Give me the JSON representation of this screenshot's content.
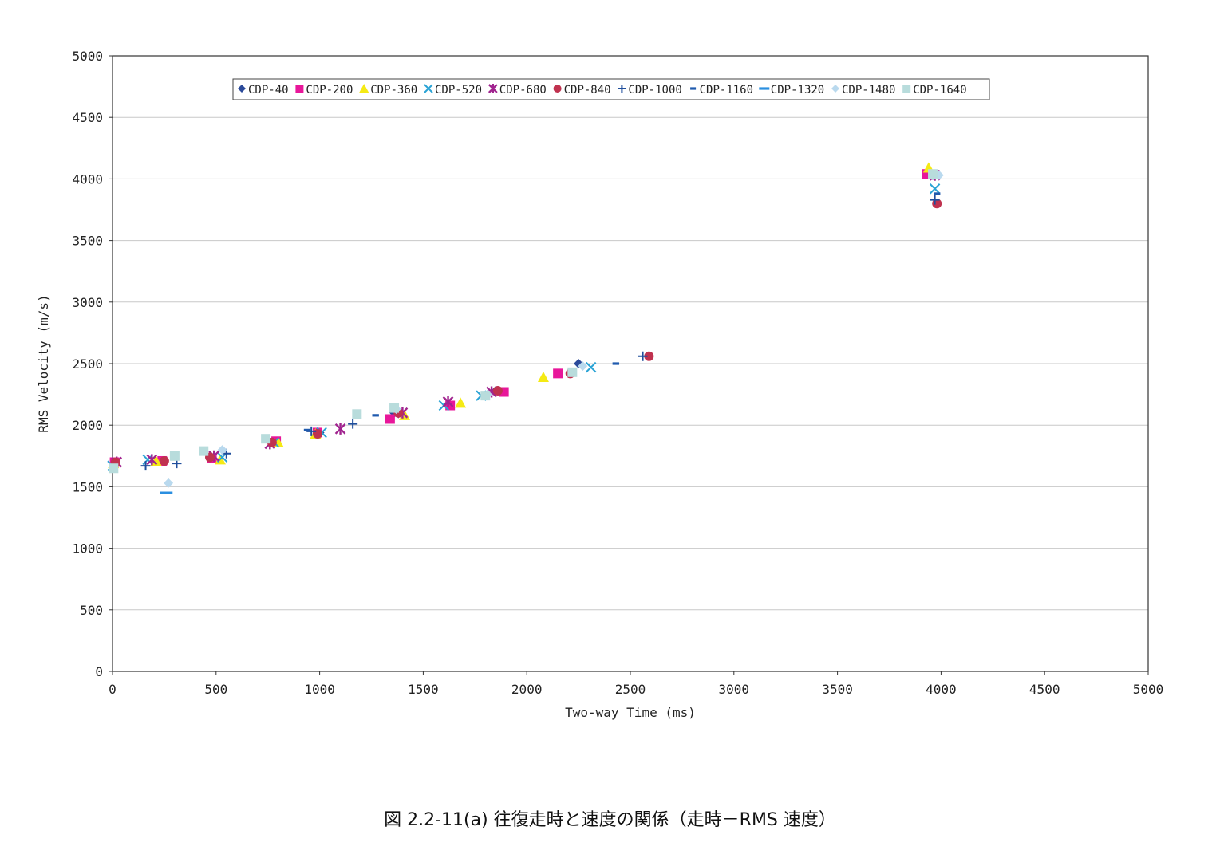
{
  "caption": "図 2.2-11(a)  往復走時と速度の関係（走時－RMS 速度）",
  "chart_data": {
    "type": "scatter",
    "title": "",
    "xlabel": "Two-way Time (ms)",
    "ylabel": "RMS Velocity (m/s)",
    "xlim": [
      0,
      5000
    ],
    "ylim": [
      0,
      5000
    ],
    "xticks": [
      0,
      500,
      1000,
      1500,
      2000,
      2500,
      3000,
      3500,
      4000,
      4500,
      5000
    ],
    "yticks": [
      0,
      500,
      1000,
      1500,
      2000,
      2500,
      3000,
      3500,
      4000,
      4500,
      5000
    ],
    "grid": "horizontal",
    "legend_position": "top",
    "series": [
      {
        "name": "CDP-40",
        "marker": "diamond",
        "color": "#2b4a9a",
        "points": [
          [
            15,
            1680
          ],
          [
            470,
            1740
          ],
          [
            1000,
            1940
          ],
          [
            1360,
            2100
          ],
          [
            1620,
            2170
          ],
          [
            1850,
            2280
          ],
          [
            2250,
            2500
          ],
          [
            3960,
            4030
          ]
        ]
      },
      {
        "name": "CDP-200",
        "marker": "square",
        "color": "#e8179a",
        "points": [
          [
            10,
            1700
          ],
          [
            240,
            1710
          ],
          [
            480,
            1730
          ],
          [
            790,
            1870
          ],
          [
            990,
            1940
          ],
          [
            1340,
            2050
          ],
          [
            1630,
            2160
          ],
          [
            1890,
            2270
          ],
          [
            2150,
            2420
          ],
          [
            3930,
            4040
          ]
        ]
      },
      {
        "name": "CDP-360",
        "marker": "triangle",
        "color": "#f5ea14",
        "points": [
          [
            5,
            1690
          ],
          [
            210,
            1710
          ],
          [
            520,
            1720
          ],
          [
            800,
            1860
          ],
          [
            980,
            1930
          ],
          [
            1410,
            2080
          ],
          [
            1680,
            2180
          ],
          [
            2080,
            2390
          ],
          [
            3940,
            4090
          ]
        ]
      },
      {
        "name": "CDP-520",
        "marker": "x",
        "color": "#2aa3d5",
        "points": [
          [
            0,
            1670
          ],
          [
            170,
            1720
          ],
          [
            530,
            1740
          ],
          [
            780,
            1860
          ],
          [
            1010,
            1940
          ],
          [
            1600,
            2160
          ],
          [
            1780,
            2240
          ],
          [
            2310,
            2470
          ],
          [
            3970,
            3920
          ]
        ]
      },
      {
        "name": "CDP-680",
        "marker": "star",
        "color": "#a1248f",
        "points": [
          [
            20,
            1700
          ],
          [
            190,
            1720
          ],
          [
            490,
            1750
          ],
          [
            760,
            1850
          ],
          [
            1100,
            1970
          ],
          [
            1400,
            2100
          ],
          [
            1620,
            2190
          ],
          [
            1830,
            2270
          ],
          [
            3970,
            4030
          ]
        ]
      },
      {
        "name": "CDP-840",
        "marker": "circle",
        "color": "#c0324f",
        "points": [
          [
            15,
            1700
          ],
          [
            250,
            1710
          ],
          [
            470,
            1740
          ],
          [
            770,
            1860
          ],
          [
            990,
            1930
          ],
          [
            1380,
            2100
          ],
          [
            1860,
            2280
          ],
          [
            2210,
            2420
          ],
          [
            2590,
            2560
          ],
          [
            3980,
            3800
          ]
        ]
      },
      {
        "name": "CDP-1000",
        "marker": "plus",
        "color": "#1f4e9c",
        "points": [
          [
            160,
            1670
          ],
          [
            310,
            1690
          ],
          [
            550,
            1770
          ],
          [
            960,
            1950
          ],
          [
            1160,
            2010
          ],
          [
            2560,
            2560
          ],
          [
            3970,
            3830
          ]
        ]
      },
      {
        "name": "CDP-1160",
        "marker": "dash",
        "color": "#1f5aae",
        "points": [
          [
            940,
            1960
          ],
          [
            1270,
            2080
          ],
          [
            2430,
            2500
          ],
          [
            3980,
            3880
          ]
        ]
      },
      {
        "name": "CDP-1320",
        "marker": "wide-dash",
        "color": "#2a8fe0",
        "points": [
          [
            260,
            1450
          ]
        ]
      },
      {
        "name": "CDP-1480",
        "marker": "diamond",
        "color": "#b9d9ee",
        "points": [
          [
            270,
            1530
          ],
          [
            530,
            1800
          ],
          [
            1370,
            2130
          ],
          [
            1810,
            2250
          ],
          [
            2270,
            2480
          ],
          [
            3990,
            4030
          ]
        ]
      },
      {
        "name": "CDP-1640",
        "marker": "square",
        "color": "#b8dcdc",
        "points": [
          [
            5,
            1650
          ],
          [
            300,
            1750
          ],
          [
            440,
            1790
          ],
          [
            740,
            1890
          ],
          [
            1180,
            2090
          ],
          [
            1360,
            2140
          ],
          [
            1800,
            2240
          ],
          [
            2220,
            2430
          ],
          [
            3960,
            4040
          ]
        ]
      }
    ]
  }
}
